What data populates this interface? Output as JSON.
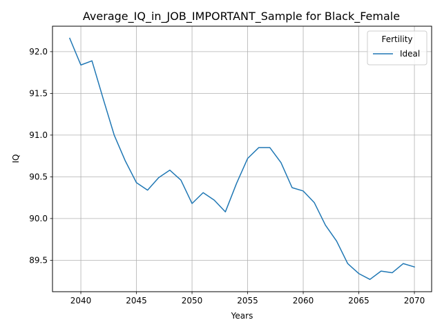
{
  "chart_data": {
    "type": "line",
    "title": "Average_IQ_in_JOB_IMPORTANT_Sample for Black_Female",
    "xlabel": "Years",
    "ylabel": "IQ",
    "xlim": [
      2037.45,
      2071.55
    ],
    "ylim": [
      89.123,
      92.305
    ],
    "xticks": [
      2040,
      2045,
      2050,
      2055,
      2060,
      2065,
      2070
    ],
    "yticks": [
      89.5,
      90.0,
      90.5,
      91.0,
      91.5,
      92.0
    ],
    "xtick_labels": [
      "2040",
      "2045",
      "2050",
      "2055",
      "2060",
      "2065",
      "2070"
    ],
    "ytick_labels": [
      "89.5",
      "90.0",
      "90.5",
      "91.0",
      "91.5",
      "92.0"
    ],
    "grid": true,
    "legend": {
      "title": "Fertility",
      "position": "top-right"
    },
    "series": [
      {
        "name": "Ideal",
        "color": "#1f77b4",
        "x": [
          2039,
          2040,
          2041,
          2042,
          2043,
          2044,
          2045,
          2046,
          2047,
          2048,
          2049,
          2050,
          2051,
          2052,
          2053,
          2054,
          2055,
          2056,
          2057,
          2058,
          2059,
          2060,
          2061,
          2062,
          2063,
          2064,
          2065,
          2066,
          2067,
          2068,
          2069,
          2070
        ],
        "y": [
          92.16,
          91.84,
          91.89,
          91.44,
          91.0,
          90.69,
          90.43,
          90.34,
          90.49,
          90.58,
          90.46,
          90.18,
          90.31,
          90.22,
          90.08,
          90.42,
          90.72,
          90.85,
          90.85,
          90.67,
          90.37,
          90.33,
          90.19,
          89.92,
          89.73,
          89.46,
          89.34,
          89.27,
          89.37,
          89.35,
          89.46,
          89.42
        ]
      }
    ]
  }
}
